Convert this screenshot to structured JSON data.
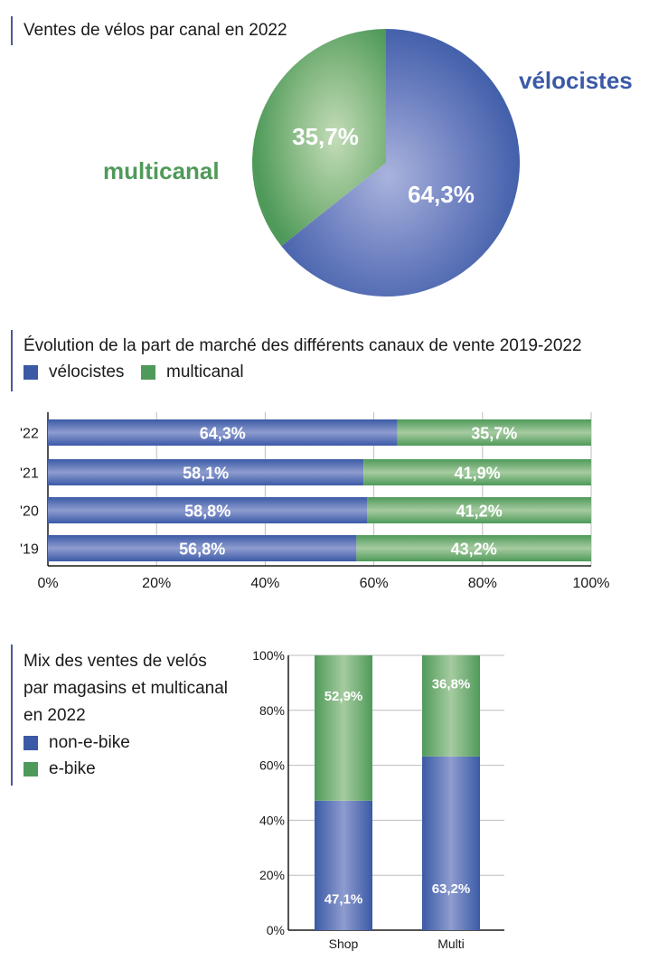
{
  "colors": {
    "velocistes": "#3b5aa6",
    "multicanal": "#4f9a5a",
    "velocistes_label": "#3b5aa6",
    "multicanal_label": "#4f9a5a"
  },
  "pie": {
    "title": "Ventes de vélos par canal en 2022",
    "label_velocistes": "vélocistes",
    "label_multicanal": "multicanal",
    "pct_velocistes": "64,3%",
    "pct_multicanal": "35,7%"
  },
  "bars": {
    "title": "Évolution de la part de marché des différents canaux de vente 2019-2022",
    "legend_velocistes": "vélocistes",
    "legend_multicanal": "multicanal"
  },
  "stack": {
    "title_line1": "Mix des ventes de velós",
    "title_line2": "par magasins et multicanal",
    "title_line3": "en 2022",
    "legend_non_ebike": "non-e-bike",
    "legend_ebike": "e-bike"
  },
  "chart_data": [
    {
      "type": "pie",
      "title": "Ventes de vélos par canal en 2022",
      "categories": [
        "vélocistes",
        "multicanal"
      ],
      "values": [
        64.3,
        35.7
      ],
      "labels": [
        "64,3%",
        "35,7%"
      ]
    },
    {
      "type": "bar",
      "orientation": "horizontal",
      "stacked": true,
      "title": "Évolution de la part de marché des différents canaux de vente 2019-2022",
      "categories": [
        "'22",
        "'21",
        "'20",
        "'19"
      ],
      "series": [
        {
          "name": "vélocistes",
          "values": [
            64.3,
            58.1,
            58.8,
            56.8
          ],
          "labels": [
            "64,3%",
            "58,1%",
            "58,8%",
            "56,8%"
          ]
        },
        {
          "name": "multicanal",
          "values": [
            35.7,
            41.9,
            41.2,
            43.2
          ],
          "labels": [
            "35,7%",
            "41,9%",
            "41,2%",
            "43,2%"
          ]
        }
      ],
      "xlim": [
        0,
        100
      ],
      "xticks": [
        "0%",
        "20%",
        "40%",
        "60%",
        "80%",
        "100%"
      ],
      "legend": "top-left",
      "grid": true
    },
    {
      "type": "bar",
      "orientation": "vertical",
      "stacked": true,
      "title": "Mix des ventes de velós par magasins et multicanal en 2022",
      "categories": [
        "Shop",
        "Multi"
      ],
      "series": [
        {
          "name": "non-e-bike",
          "values": [
            47.1,
            63.2
          ],
          "labels": [
            "47,1%",
            "63,2%"
          ]
        },
        {
          "name": "e-bike",
          "values": [
            52.9,
            36.8
          ],
          "labels": [
            "52,9%",
            "36,8%"
          ]
        }
      ],
      "ylim": [
        0,
        100
      ],
      "yticks": [
        "0%",
        "20%",
        "40%",
        "60%",
        "80%",
        "100%"
      ],
      "legend": "left",
      "grid": true
    }
  ]
}
